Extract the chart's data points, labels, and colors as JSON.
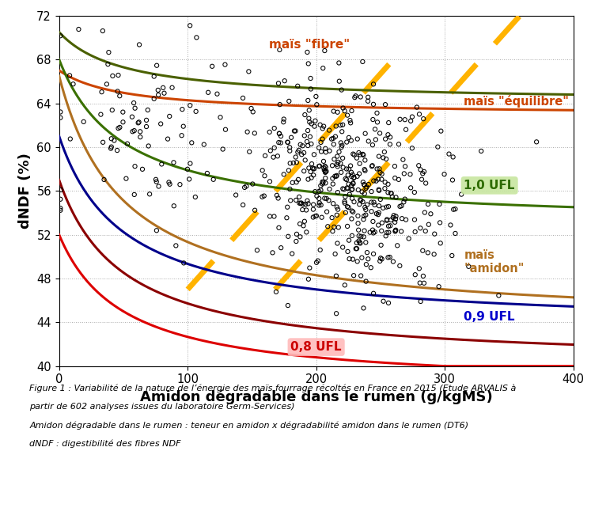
{
  "xlim": [
    0,
    400
  ],
  "ylim": [
    40,
    72
  ],
  "xlabel": "Amidon dégradable dans le rumen (g/kgMS)",
  "ylabel": "dNDF (%)",
  "xlabel_fontsize": 13,
  "ylabel_fontsize": 13,
  "xticks": [
    0,
    100,
    200,
    300,
    400
  ],
  "yticks": [
    40,
    44,
    48,
    52,
    56,
    60,
    64,
    68,
    72
  ],
  "background_color": "#ffffff",
  "plot_bg_color": "#ffffff",
  "curve_08_color": "#dd0000",
  "curve_09_color": "#00008b",
  "curve_10_color": "#3a7000",
  "curve_mfibre_color": "#4a6000",
  "curve_mequil_color": "#cc4400",
  "curve_mamidon_color": "#b07020",
  "curve_darkred_color": "#8b0000",
  "dashed_line_color": "#FFB300",
  "label_08_color": "#cc0000",
  "label_09_color": "#0000cc",
  "label_10_color": "#2e6b00",
  "label_mfibre_color": "#cc4400",
  "label_mequil_color": "#cc4400",
  "label_mamidon_color": "#b07020",
  "caption_line1": "Figure 1 : Variabilité de la nature de l’énergie des maïs fourrage récoltés en France en 2015 (Etude ARVALIS à",
  "caption_line2": "partir de 602 analyses issues du laboratoire Germ-Services)",
  "caption_line3": "Amidon dégradable dans le rumen : teneur en amidon x dégradabilité amidon dans le rumen (DT6)",
  "caption_line4": "dNDF : digestibilité des fibres NDF"
}
